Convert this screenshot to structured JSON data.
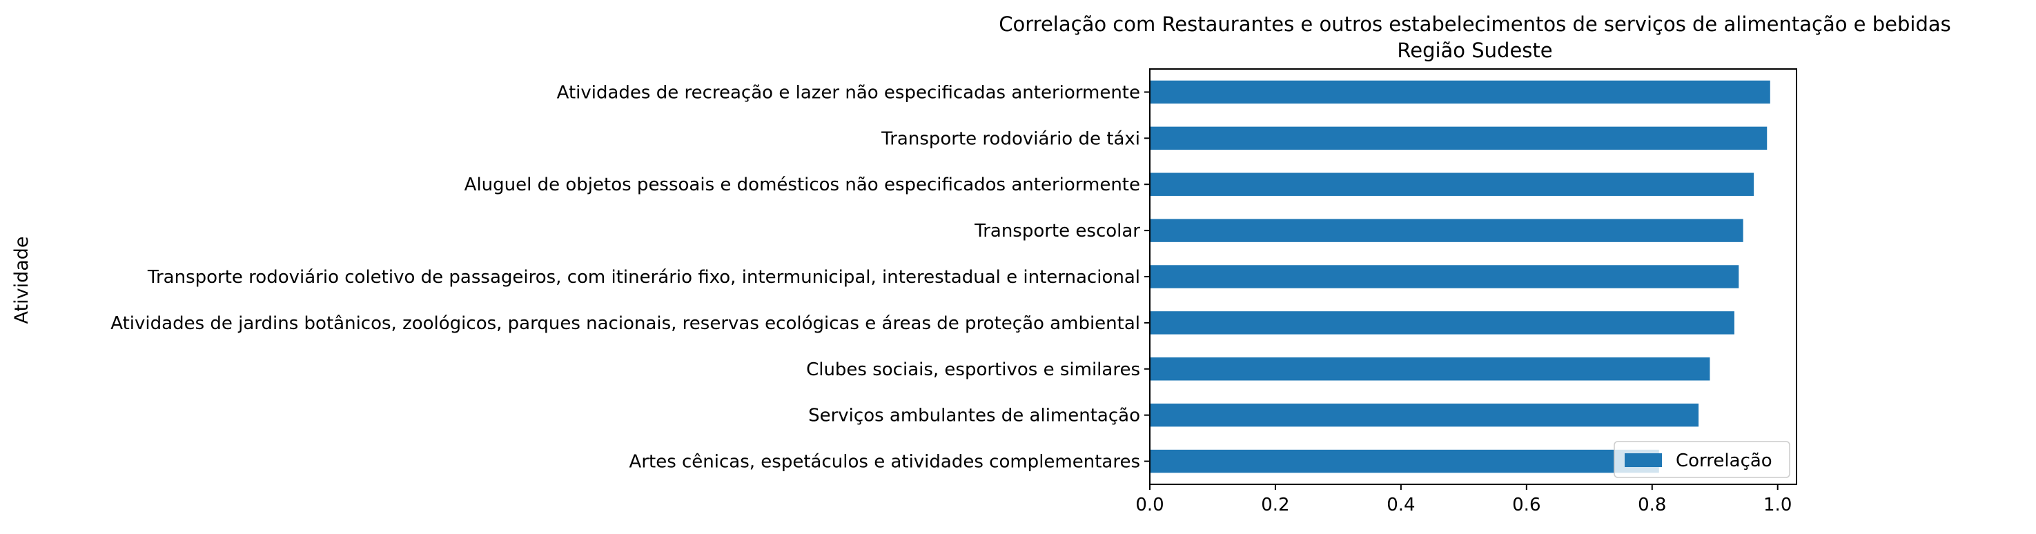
{
  "chart_data": {
    "type": "bar",
    "orientation": "horizontal",
    "title": "Correlação com Restaurantes e outros estabelecimentos de serviços de alimentação e bebidas",
    "subtitle": "Região Sudeste",
    "xlabel": "",
    "ylabel": "Atividade",
    "xlim": [
      0,
      1.03
    ],
    "x_ticks": [
      "0.0",
      "0.2",
      "0.4",
      "0.6",
      "0.8",
      "1.0"
    ],
    "grid": false,
    "legend_position": "lower-right",
    "bar_color": "#1f77b4",
    "categories": [
      "Atividades de recreação e lazer não especificadas anteriormente",
      "Transporte rodoviário de táxi",
      "Aluguel de objetos pessoais e domésticos não especificados anteriormente",
      "Transporte escolar",
      "Transporte rodoviário coletivo de passageiros, com itinerário fixo, intermunicipal, interestadual e internacional",
      "Atividades de jardins botânicos, zoológicos, parques nacionais, reservas ecológicas e áreas de proteção ambiental",
      "Clubes sociais, esportivos e similares",
      "Serviços ambulantes de alimentação",
      "Artes cênicas, espetáculos e atividades complementares"
    ],
    "series": [
      {
        "name": "Correlação",
        "values": [
          0.988,
          0.983,
          0.962,
          0.945,
          0.938,
          0.931,
          0.892,
          0.874,
          0.811
        ]
      }
    ]
  }
}
